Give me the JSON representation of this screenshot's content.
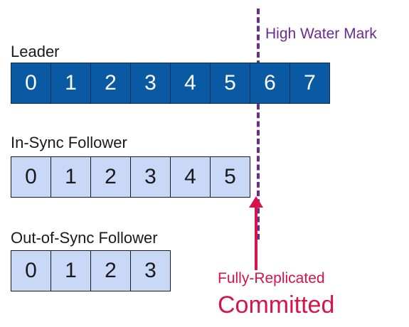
{
  "leader": {
    "label": "Leader",
    "offsets": [
      "0",
      "1",
      "2",
      "3",
      "4",
      "5",
      "6",
      "7"
    ]
  },
  "in_sync": {
    "label": "In-Sync Follower",
    "offsets": [
      "0",
      "1",
      "2",
      "3",
      "4",
      "5"
    ]
  },
  "out_of_sync": {
    "label": "Out-of-Sync Follower",
    "offsets": [
      "0",
      "1",
      "2",
      "3"
    ]
  },
  "high_water_mark": {
    "label": "High Water Mark",
    "color": "#6a2c8e"
  },
  "committed": {
    "subtitle": "Fully-Replicated",
    "title": "Committed",
    "color": "#d4144a"
  },
  "colors": {
    "leader_fill": "#0a5aa3",
    "follower_fill": "#c9d8f7"
  }
}
